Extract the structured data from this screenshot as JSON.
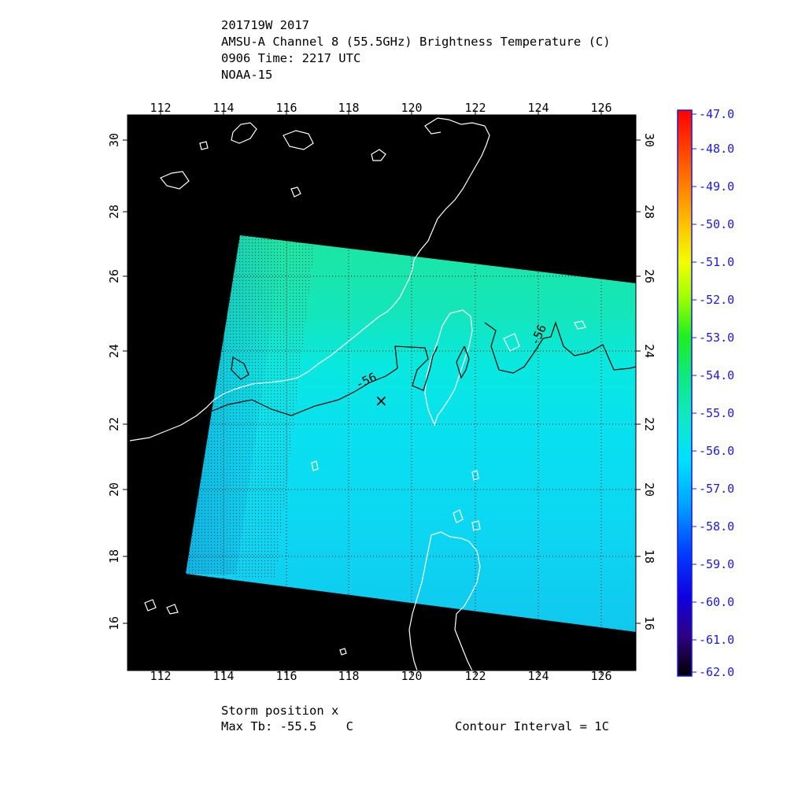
{
  "header": {
    "storm_id": "201719W 2017",
    "product": "AMSU-A Channel 8 (55.5GHz) Brightness Temperature (C)",
    "time": "0906 Time: 2217 UTC",
    "satellite": "NOAA-15"
  },
  "map": {
    "lon_ticks": [
      "112",
      "114",
      "116",
      "118",
      "120",
      "122",
      "124",
      "126"
    ],
    "lat_ticks": [
      "30",
      "28",
      "26",
      "24",
      "22",
      "20",
      "18",
      "16"
    ],
    "contour_labels": [
      "-56",
      "-56"
    ],
    "storm_marker": "×",
    "background_color": "#000000",
    "coastline_color": "#ffffff",
    "grid_style": "dotted"
  },
  "colorbar": {
    "labels": [
      "-47.0",
      "-48.0",
      "-49.0",
      "-50.0",
      "-51.0",
      "-52.0",
      "-53.0",
      "-54.0",
      "-55.0",
      "-56.0",
      "-57.0",
      "-58.0",
      "-59.0",
      "-60.0",
      "-61.0",
      "-62.0"
    ],
    "max": -47.0,
    "min": -62.0
  },
  "footer": {
    "storm_position": "Storm position x",
    "max_tb": "Max Tb: -55.5    C",
    "contour_interval": "Contour Interval = 1C"
  }
}
